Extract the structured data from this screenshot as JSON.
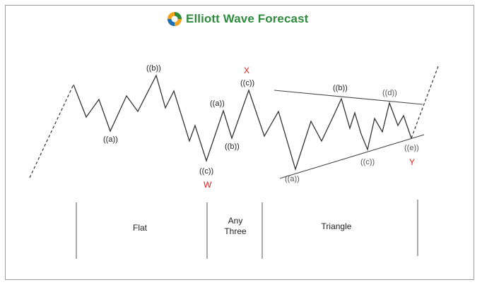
{
  "brand": {
    "name": "Elliott Wave Forecast",
    "color": "#2e8b3e"
  },
  "wave_labels": {
    "flat_a": "((a))",
    "flat_b": "((b))",
    "w_c": "((c))",
    "w": "W",
    "three_a": "((a))",
    "three_b": "((b))",
    "three_c": "((c))",
    "x": "X",
    "tri_a": "((a))",
    "tri_b": "((b))",
    "tri_c": "((c))",
    "tri_d": "((d))",
    "tri_e": "((e))",
    "y": "Y"
  },
  "sections": {
    "flat": "Flat",
    "any_three_line1": "Any",
    "any_three_line2": "Three",
    "triangle": "Triangle"
  },
  "colors": {
    "wave_line": "#333333",
    "red_label": "#e02020",
    "divider": "#555555"
  }
}
